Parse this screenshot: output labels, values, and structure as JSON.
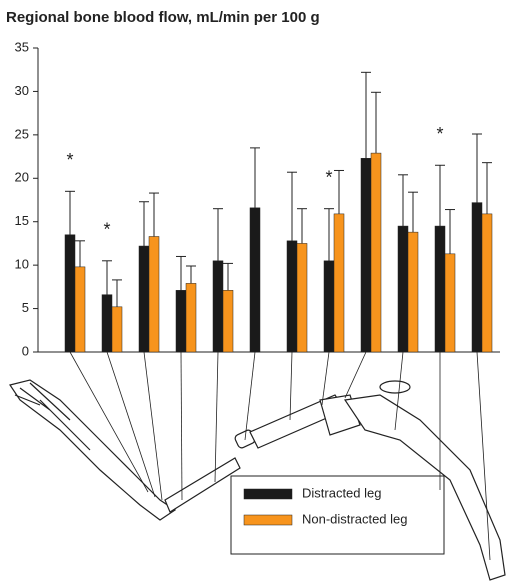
{
  "chart_data": {
    "type": "bar",
    "title": "Regional bone blood flow, mL/min per 100 g",
    "categories": [
      null,
      null,
      null,
      null,
      null,
      null,
      null,
      null,
      null,
      null,
      null,
      null
    ],
    "series": [
      {
        "name": "Distracted leg",
        "color": "#1a1a1a",
        "values": [
          13.5,
          6.6,
          12.2,
          7.1,
          10.5,
          16.6,
          12.8,
          10.5,
          22.3,
          14.5,
          14.5,
          17.2
        ],
        "errors": [
          5,
          3.9,
          5.1,
          3.9,
          6,
          6.9,
          7.9,
          6,
          9.9,
          5.9,
          7,
          7.9
        ]
      },
      {
        "name": "Non-distracted leg",
        "color": "#f7941d",
        "values": [
          9.8,
          5.2,
          13.3,
          7.9,
          7.1,
          null,
          12.5,
          15.9,
          22.9,
          13.8,
          11.3,
          15.9
        ],
        "errors": [
          3,
          3.1,
          5,
          2,
          3.1,
          null,
          4,
          5,
          7,
          4.6,
          5.1,
          5.9
        ]
      }
    ],
    "annotations": [
      "*",
      "*",
      null,
      null,
      null,
      null,
      null,
      "*",
      null,
      null,
      "*",
      null
    ],
    "ylim": [
      0,
      35
    ],
    "yticks": [
      0,
      5,
      10,
      15,
      20,
      25,
      30,
      35
    ],
    "grid": false
  }
}
